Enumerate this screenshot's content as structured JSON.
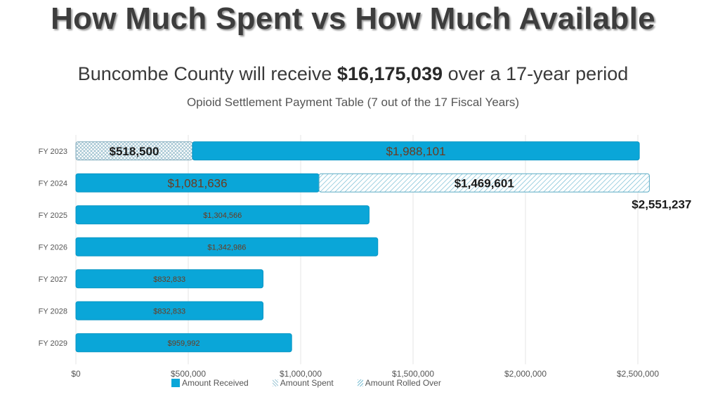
{
  "header": {
    "title": "How Much Spent vs How Much Available",
    "subtitle_pre": "Buncombe County will receive ",
    "subtitle_amount": "$16,175,039",
    "subtitle_post": " over a 17-year period",
    "subtitle2": "Opioid Settlement Payment Table (7 out of the 17 Fiscal Years)"
  },
  "colors": {
    "received": "#0aa6d8",
    "spent_hatch": "#8fb8c8",
    "rolled_hatch": "#6bb8d0",
    "label_dark": "#1a1a1a"
  },
  "chart_data": {
    "type": "bar",
    "orientation": "horizontal",
    "stacked": true,
    "title": "Opioid Settlement Payment Table (7 out of the 17 Fiscal Years)",
    "xlim": [
      0,
      2500000
    ],
    "x_ticks": [
      0,
      500000,
      1000000,
      1500000,
      2000000,
      2500000
    ],
    "x_tick_labels": [
      "$0",
      "$500,000",
      "$1,000,000",
      "$1,500,000",
      "$2,000,000",
      "$2,500,000"
    ],
    "categories": [
      "FY 2023",
      "FY 2024",
      "FY 2025",
      "FY 2026",
      "FY 2027",
      "FY 2028",
      "FY 2029"
    ],
    "series": [
      {
        "name": "Amount Spent",
        "style": "crosshatch",
        "values": [
          518500,
          0,
          0,
          0,
          0,
          0,
          0
        ]
      },
      {
        "name": "Amount Received",
        "style": "solid",
        "values": [
          1988101,
          1081636,
          1304566,
          1342986,
          832833,
          832833,
          959992
        ]
      },
      {
        "name": "Amount Rolled Over",
        "style": "diagonal",
        "values": [
          0,
          1469601,
          0,
          0,
          0,
          0,
          0
        ]
      }
    ],
    "data_labels": [
      {
        "category": "FY 2023",
        "series": "Amount Spent",
        "text": "$518,500",
        "size": "large",
        "color": "dark"
      },
      {
        "category": "FY 2023",
        "series": "Amount Received",
        "text": "$1,988,101",
        "size": "large",
        "color": "brown"
      },
      {
        "category": "FY 2024",
        "series": "Amount Received",
        "text": "$1,081,636",
        "size": "large",
        "color": "brown"
      },
      {
        "category": "FY 2024",
        "series": "Amount Rolled Over",
        "text": "$1,469,601",
        "size": "large",
        "color": "dark"
      },
      {
        "category": "FY 2025",
        "series": "Amount Received",
        "text": "$1,304,566",
        "size": "small",
        "color": "brown"
      },
      {
        "category": "FY 2026",
        "series": "Amount Received",
        "text": "$1,342,986",
        "size": "small",
        "color": "brown"
      },
      {
        "category": "FY 2027",
        "series": "Amount Received",
        "text": "$832,833",
        "size": "small",
        "color": "brown"
      },
      {
        "category": "FY 2028",
        "series": "Amount Received",
        "text": "$832,833",
        "size": "small",
        "color": "brown"
      },
      {
        "category": "FY 2029",
        "series": "Amount Received",
        "text": "$959,992",
        "size": "small",
        "color": "brown"
      }
    ],
    "total_annotation": {
      "category": "FY 2024",
      "text": "$2,551,237"
    },
    "legend": [
      "Amount Received",
      "Amount Spent",
      "Amount Rolled Over"
    ],
    "legend_position": "bottom"
  }
}
